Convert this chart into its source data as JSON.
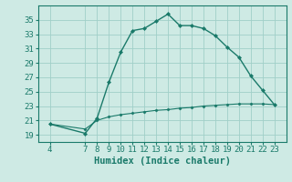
{
  "x": [
    4,
    7,
    8,
    9,
    10,
    11,
    12,
    13,
    14,
    15,
    16,
    17,
    18,
    19,
    20,
    21,
    22,
    23
  ],
  "y_main": [
    20.5,
    19.2,
    21.3,
    26.3,
    30.5,
    33.5,
    33.8,
    34.8,
    35.8,
    34.2,
    34.2,
    33.8,
    32.8,
    31.2,
    29.8,
    27.2,
    25.2,
    23.2
  ],
  "y_flat": [
    20.5,
    19.8,
    21.0,
    21.5,
    21.8,
    22.0,
    22.2,
    22.4,
    22.5,
    22.7,
    22.8,
    23.0,
    23.1,
    23.2,
    23.3,
    23.3,
    23.3,
    23.2
  ],
  "line_color": "#1a7a6a",
  "bg_color": "#ceeae4",
  "grid_color": "#a0cfc8",
  "xlabel": "Humidex (Indice chaleur)",
  "ylim": [
    18,
    37
  ],
  "xlim": [
    3,
    24
  ],
  "yticks": [
    19,
    21,
    23,
    25,
    27,
    29,
    31,
    33,
    35
  ],
  "xticks": [
    4,
    7,
    8,
    9,
    10,
    11,
    12,
    13,
    14,
    15,
    16,
    17,
    18,
    19,
    20,
    21,
    22,
    23
  ],
  "tick_fontsize": 6.5,
  "xlabel_fontsize": 7.5
}
